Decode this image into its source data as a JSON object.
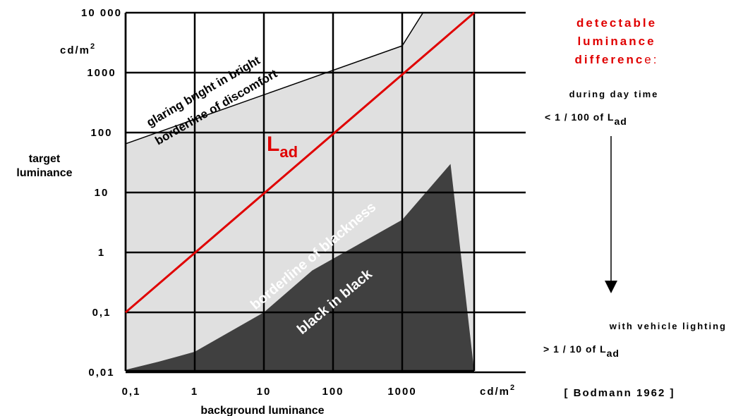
{
  "chart_data": {
    "type": "line",
    "xscale": "log",
    "yscale": "log",
    "xlim": [
      0.1,
      5000
    ],
    "ylim": [
      0.01,
      10000
    ],
    "x_ticks": [
      {
        "value": 0.1,
        "label": "0,1"
      },
      {
        "value": 1,
        "label": "1"
      },
      {
        "value": 10,
        "label": "10"
      },
      {
        "value": 100,
        "label": "100"
      },
      {
        "value": 1000,
        "label": "1000"
      }
    ],
    "y_ticks": [
      {
        "value": 0.01,
        "label": "0,01"
      },
      {
        "value": 0.1,
        "label": "0,1"
      },
      {
        "value": 1,
        "label": "1"
      },
      {
        "value": 10,
        "label": "10"
      },
      {
        "value": 100,
        "label": "100"
      },
      {
        "value": 1000,
        "label": "1000"
      },
      {
        "value": 10000,
        "label": "10 000"
      }
    ],
    "x_unit": "cd/m",
    "y_unit": "cd/m",
    "unit_superscript": "2",
    "xlabel": "background luminance",
    "ylabel_line1": "target",
    "ylabel_line2": "luminance",
    "grid": true,
    "series": [
      {
        "name": "L",
        "name_subscript": "ad",
        "color": "#e00000",
        "x": [
          0.1,
          5000
        ],
        "y": [
          0.1,
          10000
        ]
      },
      {
        "name": "borderline of discomfort",
        "color": "#000000",
        "x": [
          0.1,
          1000,
          2000
        ],
        "y": [
          65,
          2800,
          10000
        ]
      },
      {
        "name": "borderline of blackness",
        "color": "#ffffff",
        "x": [
          0.1,
          0.3,
          1,
          10,
          50,
          1000,
          5000
        ],
        "y": [
          0.011,
          0.015,
          0.022,
          0.1,
          0.5,
          3.5,
          30
        ]
      }
    ],
    "regions": [
      {
        "label": "glaring bright in bright",
        "color": "#ffffff"
      },
      {
        "label": "black in black",
        "color": "#404040"
      }
    ],
    "fill_color": "#e0e0e0"
  },
  "annotations": {
    "detectable_line1": "detectable",
    "detectable_line2": "luminance",
    "detectable_line3_main": "differenc",
    "detectable_line3_end": "e:",
    "day_label": "during day time",
    "day_ratio": "< 1 / 100 of L",
    "day_ratio_sub": "ad",
    "vehicle_label": "with vehicle lighting",
    "vehicle_ratio": "> 1 / 10 of L",
    "vehicle_ratio_sub": "ad",
    "reference": "[ Bodmann 1962 ]"
  },
  "colors": {
    "gridline": "#000000",
    "highlight": "#e00000",
    "light_area": "#e0e0e0",
    "dark_area": "#404040"
  }
}
